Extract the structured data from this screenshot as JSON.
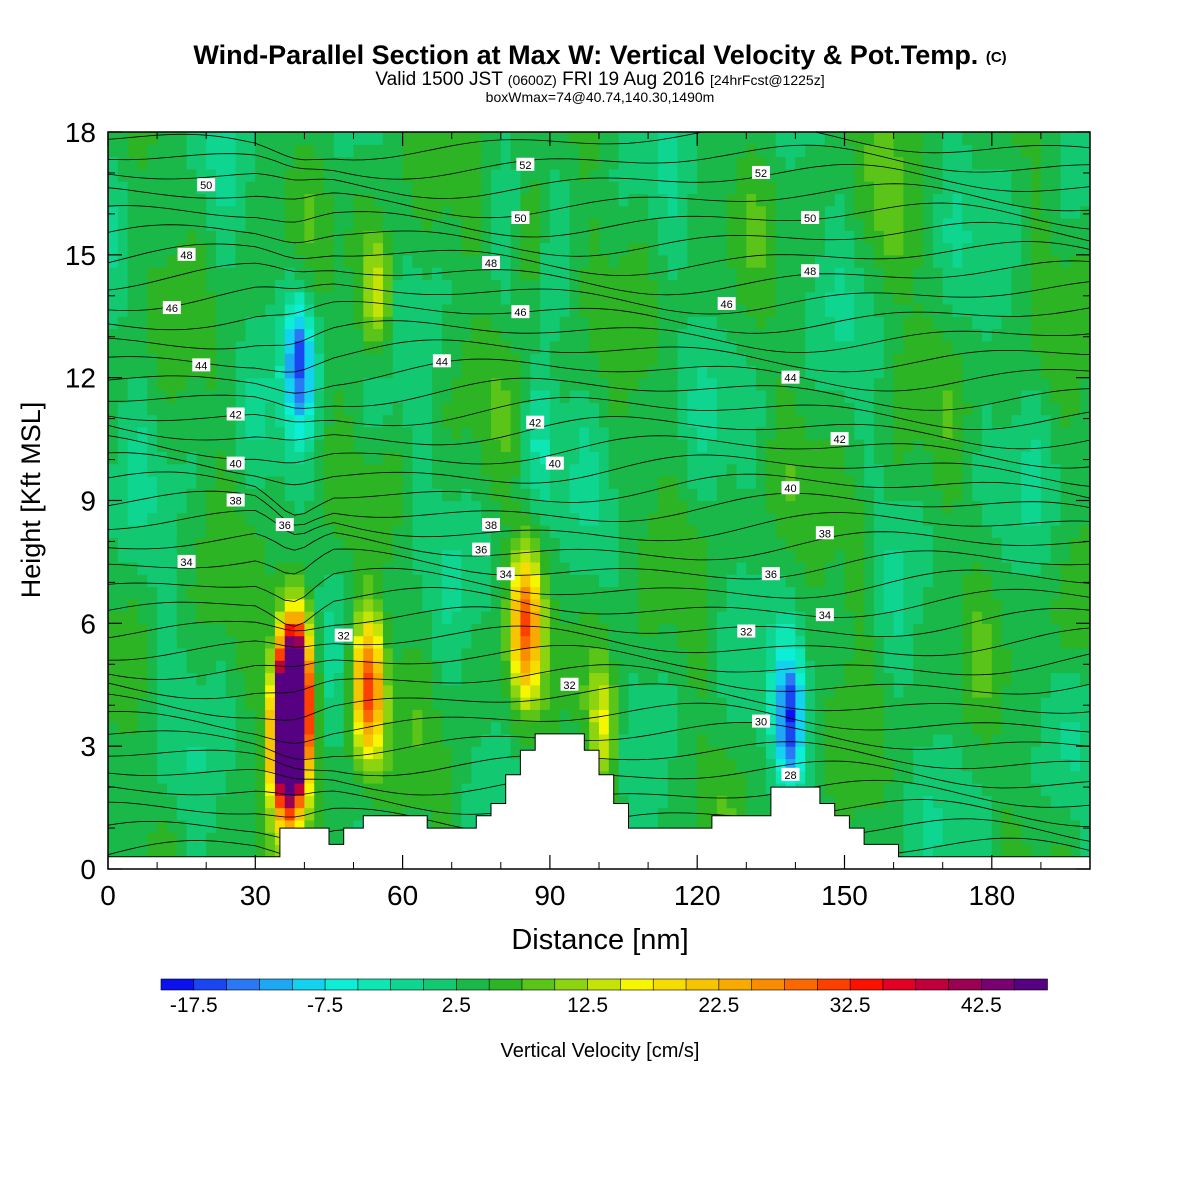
{
  "header": {
    "title": "Wind-Parallel Section at Max W: Vertical Velocity & Pot.Temp.",
    "title_mark": "(C)",
    "valid_prefix": "Valid 1500 JST",
    "valid_utc": "(0600Z)",
    "valid_date": "FRI 19 Aug 2016",
    "forecast": "[24hrFcst@1225z]",
    "box_info": "boxWmax=74@40.74,140.30,1490m"
  },
  "chart_data": {
    "type": "heatmap",
    "xlabel": "Distance [nm]",
    "ylabel": "Height [Kft MSL]",
    "xlim": [
      0,
      200
    ],
    "ylim": [
      0,
      18
    ],
    "x_ticks": [
      0,
      30,
      60,
      90,
      120,
      150,
      180
    ],
    "y_ticks": [
      0,
      3,
      6,
      9,
      12,
      15,
      18
    ],
    "colorbar": {
      "label": "Vertical Velocity [cm/s]",
      "ticks": [
        "-17.5",
        "-7.5",
        "2.5",
        "12.5",
        "22.5",
        "32.5",
        "42.5"
      ],
      "levels_min": -20,
      "levels_step": 2.5,
      "colors": [
        "#0a10ee",
        "#1a46f2",
        "#2a78f4",
        "#1ea8f4",
        "#12d2f0",
        "#0ceed6",
        "#0ee6b4",
        "#0ed690",
        "#12c870",
        "#1ab848",
        "#2cb424",
        "#5ac418",
        "#8cd410",
        "#c4e408",
        "#f6f600",
        "#f6dc00",
        "#f6c400",
        "#f8aa00",
        "#fa8c00",
        "#fc6800",
        "#fc4000",
        "#fc1000",
        "#e40022",
        "#c0003a",
        "#9c0052",
        "#780070",
        "#560082"
      ]
    },
    "terrain": [
      [
        0,
        0.3
      ],
      [
        35,
        0.3
      ],
      [
        35,
        1.0
      ],
      [
        45,
        1.0
      ],
      [
        45,
        0.6
      ],
      [
        48,
        0.6
      ],
      [
        48,
        1.0
      ],
      [
        52,
        1.0
      ],
      [
        52,
        1.3
      ],
      [
        65,
        1.3
      ],
      [
        65,
        1.0
      ],
      [
        75,
        1.0
      ],
      [
        75,
        1.3
      ],
      [
        78,
        1.3
      ],
      [
        78,
        1.6
      ],
      [
        81,
        1.6
      ],
      [
        81,
        2.3
      ],
      [
        84,
        2.3
      ],
      [
        84,
        2.9
      ],
      [
        87,
        2.9
      ],
      [
        87,
        3.3
      ],
      [
        97,
        3.3
      ],
      [
        97,
        2.9
      ],
      [
        100,
        2.9
      ],
      [
        100,
        2.3
      ],
      [
        103,
        2.3
      ],
      [
        103,
        1.6
      ],
      [
        106,
        1.6
      ],
      [
        106,
        1.0
      ],
      [
        123,
        1.0
      ],
      [
        123,
        1.3
      ],
      [
        135,
        1.3
      ],
      [
        135,
        2.0
      ],
      [
        145,
        2.0
      ],
      [
        145,
        1.6
      ],
      [
        148,
        1.6
      ],
      [
        148,
        1.3
      ],
      [
        151,
        1.3
      ],
      [
        151,
        1.0
      ],
      [
        154,
        1.0
      ],
      [
        154,
        0.6
      ],
      [
        161,
        0.6
      ],
      [
        161,
        0.3
      ],
      [
        200,
        0.3
      ]
    ],
    "w_features": [
      {
        "x": 38,
        "y": 4.6,
        "w": 48
      },
      {
        "x": 37,
        "y": 3.2,
        "w": 74
      },
      {
        "x": 53,
        "y": 4.4,
        "w": 28
      },
      {
        "x": 85,
        "y": 6.0,
        "w": 24
      },
      {
        "x": 101,
        "y": 3.6,
        "w": 14
      },
      {
        "x": 39,
        "y": 12.5,
        "w": -18
      },
      {
        "x": 139,
        "y": 3.6,
        "w": -19
      },
      {
        "x": 88,
        "y": 10.5,
        "w": -6
      },
      {
        "x": 55,
        "y": 11.5,
        "w": -4
      },
      {
        "x": 55,
        "y": 14.0,
        "w": 14
      },
      {
        "x": 86,
        "y": 15.5,
        "w": 6
      },
      {
        "x": 160,
        "y": 15.5,
        "w": 5
      },
      {
        "x": 153,
        "y": 7.5,
        "w": 5
      },
      {
        "x": 195,
        "y": 6.0,
        "w": 4
      }
    ],
    "theta_labels": [
      {
        "text": "50",
        "x": 20,
        "y": 16.7
      },
      {
        "text": "48",
        "x": 16,
        "y": 15.0
      },
      {
        "text": "46",
        "x": 13,
        "y": 13.7
      },
      {
        "text": "44",
        "x": 19,
        "y": 12.3
      },
      {
        "text": "42",
        "x": 26,
        "y": 11.1
      },
      {
        "text": "40",
        "x": 26,
        "y": 9.9
      },
      {
        "text": "38",
        "x": 26,
        "y": 9.0
      },
      {
        "text": "36",
        "x": 36,
        "y": 8.4
      },
      {
        "text": "34",
        "x": 16,
        "y": 7.5
      },
      {
        "text": "52",
        "x": 85,
        "y": 17.2
      },
      {
        "text": "50",
        "x": 84,
        "y": 15.9
      },
      {
        "text": "48",
        "x": 78,
        "y": 14.8
      },
      {
        "text": "46",
        "x": 84,
        "y": 13.6
      },
      {
        "text": "44",
        "x": 68,
        "y": 12.4
      },
      {
        "text": "42",
        "x": 87,
        "y": 10.9
      },
      {
        "text": "40",
        "x": 91,
        "y": 9.9
      },
      {
        "text": "38",
        "x": 78,
        "y": 8.4
      },
      {
        "text": "36",
        "x": 76,
        "y": 7.8
      },
      {
        "text": "34",
        "x": 81,
        "y": 7.2
      },
      {
        "text": "32",
        "x": 48,
        "y": 5.7
      },
      {
        "text": "32",
        "x": 94,
        "y": 4.5
      },
      {
        "text": "52",
        "x": 133,
        "y": 17.0
      },
      {
        "text": "50",
        "x": 143,
        "y": 15.9
      },
      {
        "text": "48",
        "x": 143,
        "y": 14.6
      },
      {
        "text": "46",
        "x": 126,
        "y": 13.8
      },
      {
        "text": "44",
        "x": 139,
        "y": 12.0
      },
      {
        "text": "42",
        "x": 149,
        "y": 10.5
      },
      {
        "text": "40",
        "x": 139,
        "y": 9.3
      },
      {
        "text": "38",
        "x": 146,
        "y": 8.2
      },
      {
        "text": "36",
        "x": 135,
        "y": 7.2
      },
      {
        "text": "34",
        "x": 146,
        "y": 6.2
      },
      {
        "text": "32",
        "x": 130,
        "y": 5.8
      },
      {
        "text": "30",
        "x": 133,
        "y": 3.6
      },
      {
        "text": "28",
        "x": 139,
        "y": 2.3
      }
    ]
  }
}
